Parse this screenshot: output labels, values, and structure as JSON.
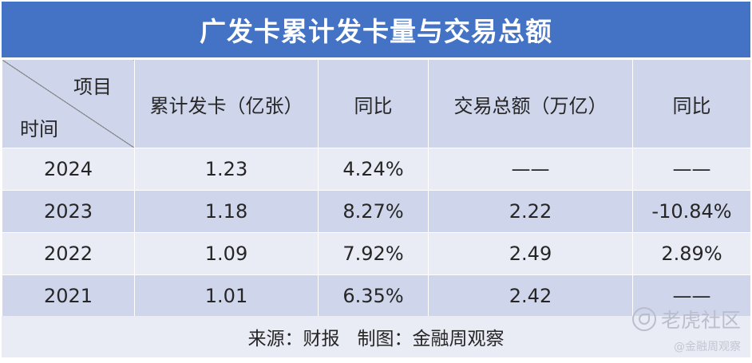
{
  "title": "广发卡累计发卡量与交易总额",
  "header": {
    "corner_top": "项目",
    "corner_bottom": "时间",
    "col1": "累计发卡（亿张）",
    "col2": "同比",
    "col3": "交易总额（万亿）",
    "col4": "同比"
  },
  "rows": [
    {
      "year": "2024",
      "cards": "1.23",
      "cards_yoy": "4.24%",
      "volume": "——",
      "volume_yoy": "——"
    },
    {
      "year": "2023",
      "cards": "1.18",
      "cards_yoy": "8.27%",
      "volume": "2.22",
      "volume_yoy": "-10.84%"
    },
    {
      "year": "2022",
      "cards": "1.09",
      "cards_yoy": "7.92%",
      "volume": "2.49",
      "volume_yoy": "2.89%"
    },
    {
      "year": "2021",
      "cards": "1.01",
      "cards_yoy": "6.35%",
      "volume": "2.42",
      "volume_yoy": "——"
    }
  ],
  "footer": {
    "source": "来源：财报   制图：金融周观察"
  },
  "watermark": {
    "brand": "老虎社区",
    "handle": "@金融周观察"
  },
  "colors": {
    "title_bg": "#4472c4",
    "header_bg": "#cfd5ea",
    "row_light": "#e9ebf5",
    "row_dark": "#cfd5ea"
  }
}
